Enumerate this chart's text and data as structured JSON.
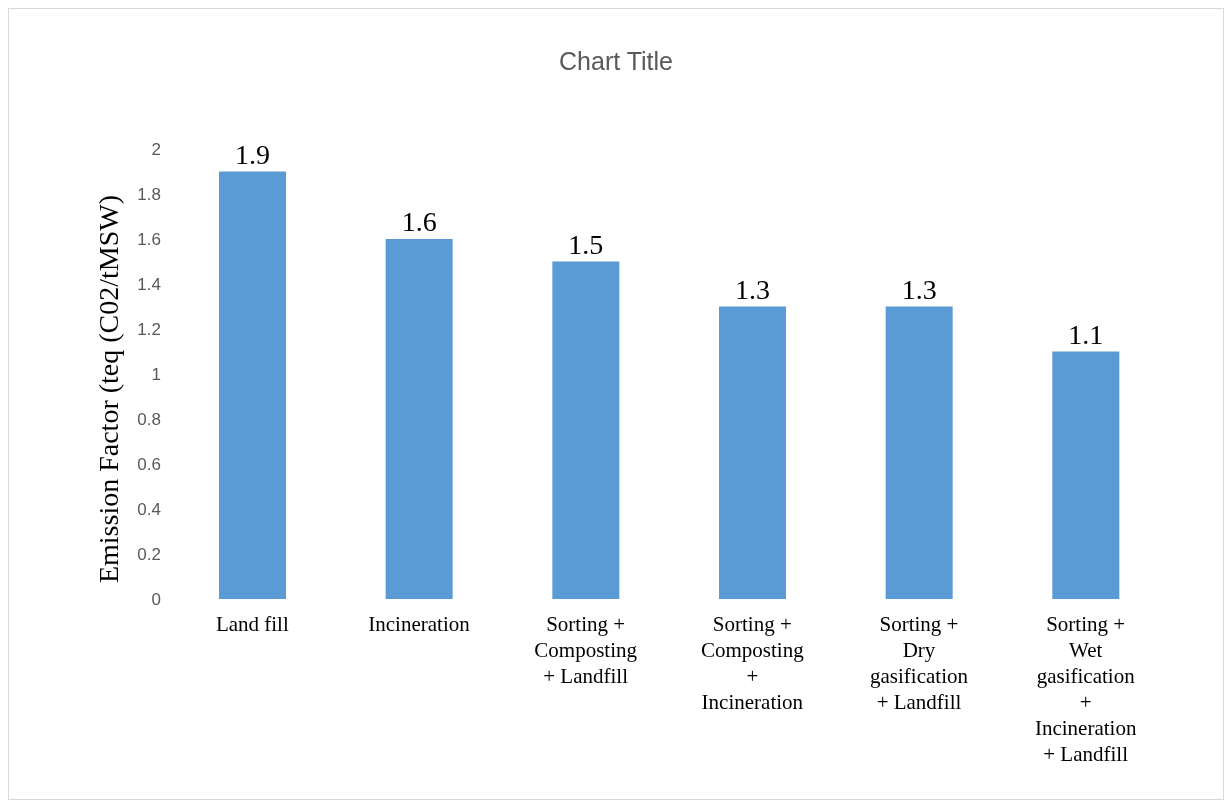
{
  "chart_data": {
    "type": "bar",
    "title": "Chart Title",
    "ylabel": "Emission Factor  (teq (C02/tMSW)",
    "categories": [
      "Land fill",
      "Incineration",
      "Sorting + Composting + Landfill",
      "Sorting + Composting + Incineration",
      "Sorting + Dry gasification + Landfill",
      "Sorting + Wet gasification + Incineration + Landfill"
    ],
    "values": [
      1.9,
      1.6,
      1.5,
      1.3,
      1.3,
      1.1
    ],
    "color": "#5b9bd5",
    "ylim": [
      0,
      2
    ],
    "yticks": [
      0,
      0.2,
      0.4,
      0.6,
      0.8,
      1,
      1.2,
      1.4,
      1.6,
      1.8,
      2
    ],
    "grid": false,
    "data_labels": true
  }
}
